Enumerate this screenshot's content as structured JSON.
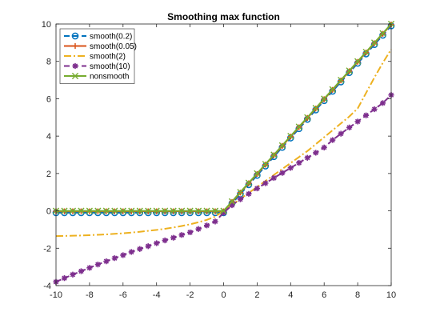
{
  "chart_data": {
    "type": "line",
    "title": "Smoothing max function",
    "xlabel": "",
    "ylabel": "",
    "xlim": [
      -10,
      10
    ],
    "ylim": [
      -4,
      10
    ],
    "x_ticks": [
      "-10",
      "-8",
      "-6",
      "-4",
      "-2",
      "0",
      "2",
      "4",
      "6",
      "8",
      "10"
    ],
    "y_ticks": [
      "-4",
      "-2",
      "0",
      "2",
      "4",
      "6",
      "8",
      "10"
    ],
    "grid": false,
    "legend_position": "top-left",
    "x": [
      -10,
      -9.5,
      -9,
      -8.5,
      -8,
      -7.5,
      -7,
      -6.5,
      -6,
      -5.5,
      -5,
      -4.5,
      -4,
      -3.5,
      -3,
      -2.5,
      -2,
      -1.5,
      -1,
      -0.5,
      0,
      0.5,
      1,
      1.5,
      2,
      2.5,
      3,
      3.5,
      4,
      4.5,
      5,
      5.5,
      6,
      6.5,
      7,
      7.5,
      8,
      8.5,
      9,
      9.5,
      10
    ],
    "series": [
      {
        "name": "smooth(0.2)",
        "color": "#0072BD",
        "line_style": "dashed",
        "marker": "circle",
        "values": [
          -0.1,
          -0.1,
          -0.1,
          -0.1,
          -0.1,
          -0.1,
          -0.1,
          -0.1,
          -0.1,
          -0.1,
          -0.1,
          -0.1,
          -0.1,
          -0.1,
          -0.1,
          -0.1,
          -0.1,
          -0.1,
          -0.1,
          -0.1,
          -0.1,
          0.4,
          0.9,
          1.4,
          1.9,
          2.4,
          2.9,
          3.4,
          3.9,
          4.4,
          4.9,
          5.4,
          5.9,
          6.4,
          6.9,
          7.4,
          7.9,
          8.4,
          8.9,
          9.4,
          9.9
        ]
      },
      {
        "name": "smooth(0.05)",
        "color": "#D95319",
        "line_style": "solid",
        "marker": "plus",
        "values": [
          -0.025,
          -0.025,
          -0.025,
          -0.025,
          -0.025,
          -0.025,
          -0.025,
          -0.025,
          -0.025,
          -0.025,
          -0.025,
          -0.025,
          -0.025,
          -0.025,
          -0.025,
          -0.025,
          -0.025,
          -0.025,
          -0.025,
          -0.025,
          -0.025,
          0.475,
          0.975,
          1.475,
          1.975,
          2.475,
          2.975,
          3.475,
          3.975,
          4.475,
          4.975,
          5.475,
          5.975,
          6.475,
          6.975,
          7.475,
          7.975,
          8.475,
          8.975,
          9.475,
          9.975
        ]
      },
      {
        "name": "smooth(2)",
        "color": "#EDB120",
        "line_style": "dashdot",
        "marker": "none",
        "values": [
          -1.35,
          -1.34,
          -1.33,
          -1.32,
          -1.3,
          -1.28,
          -1.26,
          -1.23,
          -1.2,
          -1.16,
          -1.12,
          -1.07,
          -1.02,
          -0.96,
          -0.89,
          -0.81,
          -0.72,
          -0.61,
          -0.48,
          -0.31,
          0.0,
          0.32,
          0.64,
          0.96,
          1.28,
          1.6,
          1.92,
          2.24,
          2.56,
          2.88,
          3.2,
          3.57,
          3.94,
          4.31,
          4.68,
          5.05,
          5.48,
          6.31,
          7.14,
          7.92,
          8.65
        ]
      },
      {
        "name": "smooth(10)",
        "color": "#7E2F8E",
        "line_style": "dashed",
        "marker": "asterisk",
        "values": [
          -3.8,
          -3.6,
          -3.41,
          -3.23,
          -3.05,
          -2.87,
          -2.7,
          -2.53,
          -2.37,
          -2.2,
          -2.04,
          -1.89,
          -1.73,
          -1.58,
          -1.44,
          -1.29,
          -1.15,
          -0.97,
          -0.78,
          -0.57,
          -0.1,
          0.3,
          0.62,
          0.91,
          1.2,
          1.48,
          1.76,
          2.03,
          2.3,
          2.57,
          2.84,
          3.11,
          3.39,
          3.79,
          4.13,
          4.46,
          4.78,
          5.11,
          5.44,
          5.77,
          6.2
        ]
      },
      {
        "name": "nonsmooth",
        "color": "#77AC30",
        "line_style": "solid",
        "marker": "cross",
        "values": [
          0,
          0,
          0,
          0,
          0,
          0,
          0,
          0,
          0,
          0,
          0,
          0,
          0,
          0,
          0,
          0,
          0,
          0,
          0,
          0,
          0,
          0.5,
          1,
          1.5,
          2,
          2.5,
          3,
          3.5,
          4,
          4.5,
          5,
          5.5,
          6,
          6.5,
          7,
          7.5,
          8,
          8.5,
          9,
          9.5,
          10
        ]
      }
    ]
  }
}
